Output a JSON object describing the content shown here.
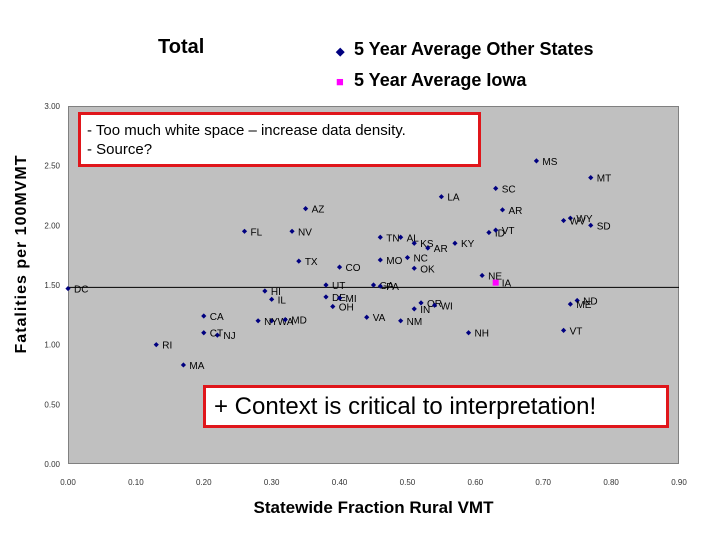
{
  "chart_data": {
    "type": "scatter",
    "title": "Total",
    "xlabel": "Statewide Fraction Rural VMT",
    "ylabel": "Fatalities per 100MVMT",
    "xlim": [
      0,
      0.9
    ],
    "ylim": [
      0,
      3.0
    ],
    "x_ticks": [
      "0.00",
      "0.10",
      "0.20",
      "0.30",
      "0.40",
      "0.50",
      "0.60",
      "0.70",
      "0.80",
      "0.90"
    ],
    "y_ticks": [
      "0.00",
      "0.50",
      "1.00",
      "1.50",
      "2.00",
      "2.50",
      "3.00"
    ],
    "grid": false,
    "legend_placement": "top-right",
    "reference_line_y": 1.48,
    "series": [
      {
        "name": "5 Year Average Other States",
        "marker": "diamond",
        "color": "#000080",
        "points": [
          {
            "label": "DC",
            "x": 0.0,
            "y": 1.47
          },
          {
            "label": "RI",
            "x": 0.13,
            "y": 1.0
          },
          {
            "label": "MA",
            "x": 0.17,
            "y": 0.83
          },
          {
            "label": "CA",
            "x": 0.2,
            "y": 1.24
          },
          {
            "label": "NJ",
            "x": 0.22,
            "y": 1.08
          },
          {
            "label": "CT",
            "x": 0.2,
            "y": 1.1
          },
          {
            "label": "FL",
            "x": 0.26,
            "y": 1.95
          },
          {
            "label": "HI",
            "x": 0.29,
            "y": 1.45
          },
          {
            "label": "IL",
            "x": 0.3,
            "y": 1.38
          },
          {
            "label": "WA",
            "x": 0.3,
            "y": 1.2
          },
          {
            "label": "NY",
            "x": 0.28,
            "y": 1.2
          },
          {
            "label": "MD",
            "x": 0.32,
            "y": 1.21
          },
          {
            "label": "NV",
            "x": 0.33,
            "y": 1.95
          },
          {
            "label": "AZ",
            "x": 0.35,
            "y": 2.14
          },
          {
            "label": "TX",
            "x": 0.34,
            "y": 1.7
          },
          {
            "label": "UT",
            "x": 0.38,
            "y": 1.5
          },
          {
            "label": "DE",
            "x": 0.38,
            "y": 1.4
          },
          {
            "label": "MI",
            "x": 0.4,
            "y": 1.39
          },
          {
            "label": "OH",
            "x": 0.39,
            "y": 1.32
          },
          {
            "label": "CO",
            "x": 0.4,
            "y": 1.65
          },
          {
            "label": "VA",
            "x": 0.44,
            "y": 1.23
          },
          {
            "label": "GA",
            "x": 0.45,
            "y": 1.5
          },
          {
            "label": "PA",
            "x": 0.46,
            "y": 1.49
          },
          {
            "label": "MO",
            "x": 0.46,
            "y": 1.71
          },
          {
            "label": "TN",
            "x": 0.46,
            "y": 1.9
          },
          {
            "label": "AL",
            "x": 0.49,
            "y": 1.9
          },
          {
            "label": "NM",
            "x": 0.49,
            "y": 1.2
          },
          {
            "label": "LA",
            "x": 0.55,
            "y": 2.24
          },
          {
            "label": "KS",
            "x": 0.51,
            "y": 1.85
          },
          {
            "label": "AR",
            "x": 0.53,
            "y": 1.81
          },
          {
            "label": "NC",
            "x": 0.5,
            "y": 1.73
          },
          {
            "label": "OK",
            "x": 0.51,
            "y": 1.64
          },
          {
            "label": "KY",
            "x": 0.57,
            "y": 1.85
          },
          {
            "label": "OR",
            "x": 0.52,
            "y": 1.35
          },
          {
            "label": "WI",
            "x": 0.54,
            "y": 1.33
          },
          {
            "label": "IN",
            "x": 0.51,
            "y": 1.3
          },
          {
            "label": "NH",
            "x": 0.59,
            "y": 1.1
          },
          {
            "label": "NE",
            "x": 0.61,
            "y": 1.58
          },
          {
            "label": "SC",
            "x": 0.63,
            "y": 2.31
          },
          {
            "label": "AR",
            "x": 0.64,
            "y": 2.13
          },
          {
            "label": "ID",
            "x": 0.62,
            "y": 1.94
          },
          {
            "label": "VT",
            "x": 0.63,
            "y": 1.96
          },
          {
            "label": "MS",
            "x": 0.69,
            "y": 2.54
          },
          {
            "label": "MT",
            "x": 0.77,
            "y": 2.4
          },
          {
            "label": "WY",
            "x": 0.74,
            "y": 2.06
          },
          {
            "label": "WV",
            "x": 0.73,
            "y": 2.04
          },
          {
            "label": "SD",
            "x": 0.77,
            "y": 2.0
          },
          {
            "label": "ND",
            "x": 0.75,
            "y": 1.37
          },
          {
            "label": "ME",
            "x": 0.74,
            "y": 1.34
          },
          {
            "label": "VT",
            "x": 0.73,
            "y": 1.12
          }
        ]
      },
      {
        "name": "5 Year Average Iowa",
        "marker": "square",
        "color": "#ff00ff",
        "points": [
          {
            "label": "IA",
            "x": 0.63,
            "y": 1.52
          }
        ]
      }
    ]
  },
  "legend": {
    "items": [
      {
        "symbol": "◆",
        "label": "5 Year Average Other States"
      },
      {
        "symbol": "■",
        "label": "5 Year Average Iowa"
      }
    ]
  },
  "annotations": {
    "top_line1": "- Too much white space – increase data density.",
    "top_line2": "- Source?",
    "bottom": "+ Context is critical to interpretation!",
    "callout_border_color": "#e0161b"
  },
  "colors": {
    "plot_background": "#c0c0c0",
    "other_states_marker": "#000080",
    "iowa_marker": "#ff00ff"
  }
}
